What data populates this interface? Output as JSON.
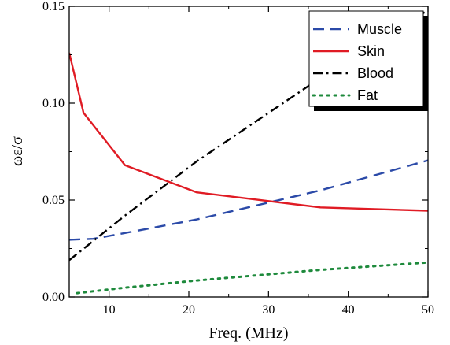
{
  "chart_data": {
    "type": "line",
    "title": "",
    "xlabel": "Freq. (MHz)",
    "ylabel": "ωε/σ",
    "xlim": [
      5,
      50
    ],
    "ylim": [
      0,
      0.15
    ],
    "x_ticks": [
      10,
      20,
      30,
      40,
      50
    ],
    "x_tick_labels": [
      "10",
      "20",
      "30",
      "40",
      "50"
    ],
    "y_ticks": [
      0,
      0.05,
      0.1,
      0.15
    ],
    "y_tick_labels": [
      "0.00",
      "0.05",
      "0.10",
      "0.15"
    ],
    "grid": false,
    "legend_position": "top-right",
    "series": [
      {
        "name": "Muscle",
        "color": "#2b4aa8",
        "style": "dashed",
        "x": [
          5,
          8,
          12,
          21,
          36.5,
          50
        ],
        "y": [
          0.0295,
          0.03,
          0.033,
          0.04,
          0.055,
          0.0705
        ]
      },
      {
        "name": "Skin",
        "color": "#e01b24",
        "style": "solid",
        "x": [
          5,
          6.8,
          12,
          21,
          36.5,
          50
        ],
        "y": [
          0.126,
          0.095,
          0.068,
          0.054,
          0.0462,
          0.0445
        ]
      },
      {
        "name": "Blood",
        "color": "#000000",
        "style": "dashdot",
        "x": [
          5,
          12,
          21,
          36.5,
          50
        ],
        "y": [
          0.019,
          0.042,
          0.07,
          0.113,
          0.148
        ]
      },
      {
        "name": "Fat",
        "color": "#1e8a3c",
        "style": "dotted",
        "x": [
          6,
          12,
          21,
          36.5,
          50
        ],
        "y": [
          0.002,
          0.0048,
          0.0085,
          0.014,
          0.0178
        ]
      }
    ]
  }
}
